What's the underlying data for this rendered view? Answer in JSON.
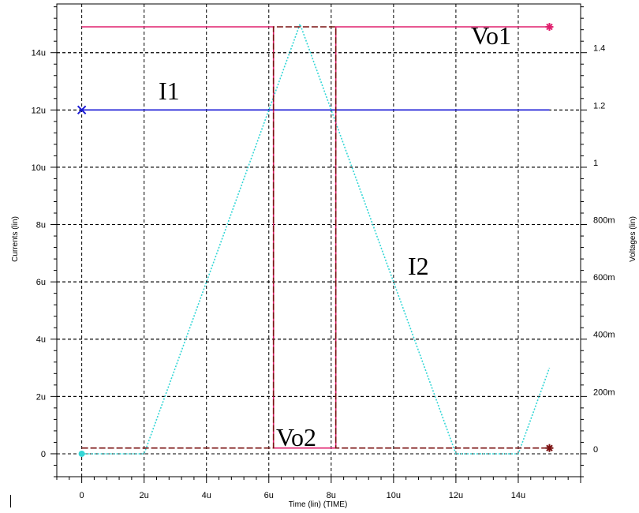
{
  "chart_data": {
    "type": "line",
    "xlabel": "Time (lin) (TIME)",
    "ylabel_left": "Currents (lin)",
    "ylabel_right": "Voltages (lin)",
    "xlim": [
      -0.8,
      16
    ],
    "ylim_left": [
      -0.8,
      15.7
    ],
    "ylim_right": [
      -0.08,
      1.57
    ],
    "grid": true,
    "x_ticks": [
      0,
      2,
      4,
      6,
      8,
      10,
      12,
      14
    ],
    "x_tick_labels": [
      "0",
      "2u",
      "4u",
      "6u",
      "8u",
      "10u",
      "12u",
      "14u"
    ],
    "y_left_ticks": [
      0,
      2,
      4,
      6,
      8,
      10,
      12,
      14
    ],
    "y_left_tick_labels": [
      "0",
      "2u",
      "4u",
      "6u",
      "8u",
      "10u",
      "12u",
      "14u"
    ],
    "y_right_ticks": [
      0,
      0.2,
      0.4,
      0.6,
      0.8,
      1.0,
      1.2,
      1.4
    ],
    "y_right_tick_labels": [
      "0",
      "200m",
      "400m",
      "600m",
      "800m",
      "1",
      "1.2",
      "1.4"
    ],
    "series": [
      {
        "name": "I1",
        "axis": "left",
        "color": "#1a1ad6",
        "style": "solid",
        "marker": "x",
        "x": [
          0,
          15
        ],
        "y": [
          12,
          12
        ]
      },
      {
        "name": "I2",
        "axis": "left",
        "color": "#33d6d6",
        "style": "dotted",
        "marker": "o",
        "x": [
          0,
          2,
          7,
          12,
          14,
          15
        ],
        "y": [
          0,
          0,
          15,
          0,
          0,
          3
        ]
      },
      {
        "name": "Vo1",
        "axis": "right",
        "color": "#e0206e",
        "style": "solid",
        "marker": "*",
        "x": [
          0,
          6.15,
          6.15,
          8.15,
          8.15,
          15
        ],
        "y": [
          1.49,
          1.49,
          0.02,
          0.02,
          1.49,
          1.49
        ]
      },
      {
        "name": "Vo2",
        "axis": "right",
        "color": "#7a1010",
        "style": "dashed",
        "marker": "*",
        "x": [
          0,
          6.15,
          6.15,
          8.15,
          8.15,
          15
        ],
        "y": [
          0.02,
          0.02,
          1.49,
          1.49,
          0.02,
          0.02
        ]
      }
    ]
  },
  "annotations": {
    "vo1": "Vo1",
    "i1": "I1",
    "i2": "I2",
    "vo2": "Vo2"
  }
}
